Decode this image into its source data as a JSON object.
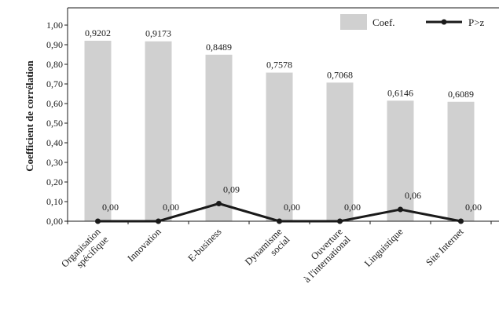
{
  "chart_data": {
    "type": "bar",
    "ylabel": "Coefficient de corrélation",
    "xlabel": "",
    "ylim": [
      0,
      1
    ],
    "y_ticks": [
      "0,00",
      "0,10",
      "0,20",
      "0,30",
      "0,40",
      "0,50",
      "0,60",
      "0,70",
      "0,80",
      "0,90",
      "1,00"
    ],
    "categories": [
      [
        "Organisation",
        "spécifique"
      ],
      [
        "Innovation"
      ],
      [
        "E-business"
      ],
      [
        "Dynamisme",
        "social"
      ],
      [
        "Ouverture",
        "à l'international"
      ],
      [
        "Linguistique"
      ],
      [
        "Site Internet"
      ]
    ],
    "series": [
      {
        "name": "Coef.",
        "kind": "bar",
        "color": "#d0d0d0",
        "values": [
          0.9202,
          0.9173,
          0.8489,
          0.7578,
          0.7068,
          0.6146,
          0.6089
        ],
        "labels": [
          "0,9202",
          "0,9173",
          "0,8489",
          "0,7578",
          "0,7068",
          "0,6146",
          "0,6089"
        ]
      },
      {
        "name": "P>z",
        "kind": "line",
        "color": "#1a1a1a",
        "values": [
          0.0,
          0.0,
          0.09,
          0.0,
          0.0,
          0.06,
          0.0
        ],
        "labels": [
          "0,00",
          "0,00",
          "0,09",
          "0,00",
          "0,00",
          "0,06",
          "0,00"
        ]
      }
    ],
    "legend": {
      "placement": "top-right"
    },
    "grid": false
  }
}
